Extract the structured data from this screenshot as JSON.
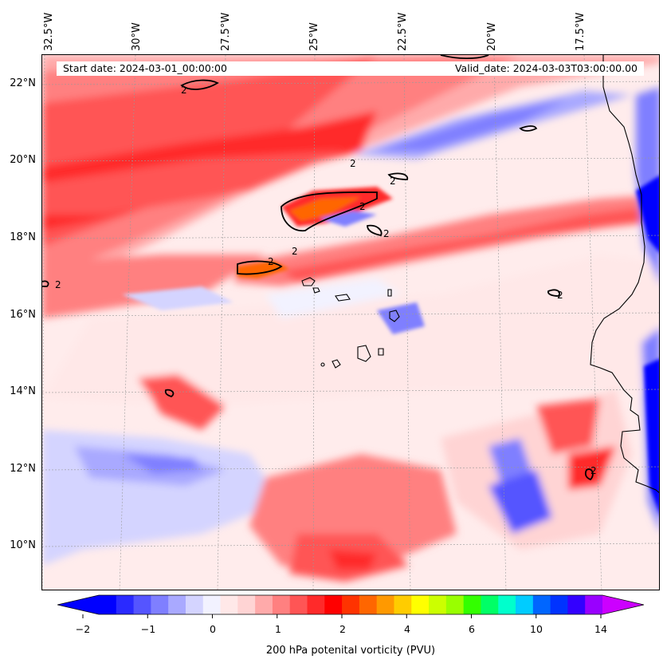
{
  "header": {
    "start_date": "Start date: 2024-03-01_00:00:00",
    "valid_date": "Valid_date: 2024-03-03T03:00:00.00"
  },
  "map": {
    "region": "Eastern tropical Atlantic / Cape Verde / West Africa coast",
    "projection": "Lambert conformal",
    "gridlines": true,
    "contour_label": "2",
    "lon_labels": [
      "32.5°W",
      "30°W",
      "27.5°W",
      "25°W",
      "22.5°W",
      "20°W",
      "17.5°W"
    ],
    "lat_labels": [
      "22°N",
      "20°N",
      "18°N",
      "16°N",
      "14°N",
      "12°N",
      "10°N"
    ]
  },
  "colorbar": {
    "title": "200 hPa potenital vorticity (PVU)",
    "tick_labels": [
      "−2",
      "−1",
      "0",
      "1",
      "2",
      "4",
      "6",
      "10",
      "14"
    ],
    "extend": "both",
    "colors": [
      "#0000ff",
      "#2a2aff",
      "#5555ff",
      "#7f7fff",
      "#a9a9ff",
      "#d4d4ff",
      "#f2f2ff",
      "#ffe8e8",
      "#ffd4d4",
      "#ffaaaa",
      "#ff8080",
      "#ff5555",
      "#ff2a2a",
      "#ff0000",
      "#ff3300",
      "#ff6600",
      "#ff9900",
      "#ffcc00",
      "#ffff00",
      "#ccff00",
      "#99ff00",
      "#33ff00",
      "#00ff66",
      "#00ffcc",
      "#00ccff",
      "#0066ff",
      "#0033ff",
      "#3300ff",
      "#9900ff"
    ],
    "end_low_color": "#0000ff",
    "end_high_color": "#cc00ff"
  }
}
